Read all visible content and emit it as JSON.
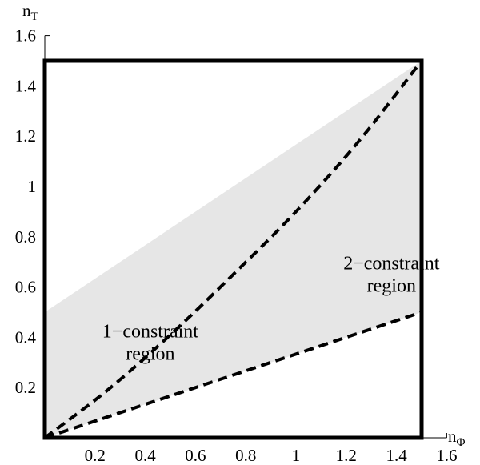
{
  "chart_data": {
    "type": "area",
    "xlabel": "nΦ",
    "ylabel": "nT",
    "xlim": [
      0,
      1.6
    ],
    "ylim": [
      0,
      1.6
    ],
    "x_ticks": [
      "0.2",
      "0.4",
      "0.6",
      "0.8",
      "1",
      "1.2",
      "1.4",
      "1.6"
    ],
    "y_ticks": [
      "0.2",
      "0.4",
      "0.6",
      "0.8",
      "1",
      "1.2",
      "1.4",
      "1.6"
    ],
    "grid": false,
    "colors": {
      "shaded_region": "#e6e6e6",
      "lines": "#000000"
    },
    "plot_box": {
      "x": [
        0,
        1.5
      ],
      "y": [
        0,
        1.5
      ]
    },
    "shaded_region": {
      "description_points": [
        [
          0,
          0
        ],
        [
          0,
          0.5
        ],
        [
          1.5,
          1.5
        ],
        [
          1.5,
          0.5
        ],
        [
          0,
          0
        ]
      ]
    },
    "series": [
      {
        "style": "dashed",
        "x": [
          0,
          0.25,
          0.5,
          0.75,
          1.0,
          1.25,
          1.5
        ],
        "y": [
          0,
          0.19,
          0.41,
          0.65,
          0.9,
          1.18,
          1.5
        ]
      },
      {
        "style": "dashed",
        "x": [
          0,
          1.5
        ],
        "y": [
          0,
          0.5
        ]
      }
    ],
    "annotations": [
      {
        "lines": [
          "2−constraint",
          "region"
        ],
        "x": 1.38,
        "y": 0.67
      },
      {
        "lines": [
          "1−constraint",
          "region"
        ],
        "x": 0.42,
        "y": 0.4
      }
    ]
  }
}
